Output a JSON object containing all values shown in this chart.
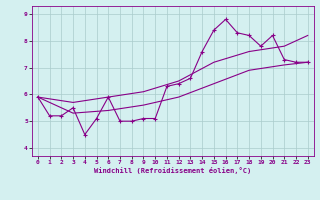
{
  "xlabel": "Windchill (Refroidissement éolien,°C)",
  "bg_color": "#d4f0f0",
  "line_color": "#880088",
  "grid_color": "#aacccc",
  "xlim": [
    -0.5,
    23.5
  ],
  "ylim": [
    3.7,
    9.3
  ],
  "xticks": [
    0,
    1,
    2,
    3,
    4,
    5,
    6,
    7,
    8,
    9,
    10,
    11,
    12,
    13,
    14,
    15,
    16,
    17,
    18,
    19,
    20,
    21,
    22,
    23
  ],
  "yticks": [
    4,
    5,
    6,
    7,
    8,
    9
  ],
  "line1_x": [
    0,
    1,
    2,
    3,
    4,
    5,
    6,
    7,
    8,
    9,
    10,
    11,
    12,
    13,
    14,
    15,
    16,
    17,
    18,
    19,
    20,
    21,
    22,
    23
  ],
  "line1_y": [
    5.9,
    5.2,
    5.2,
    5.5,
    4.5,
    5.1,
    5.9,
    5.0,
    5.0,
    5.1,
    5.1,
    6.3,
    6.4,
    6.6,
    7.6,
    8.4,
    8.8,
    8.3,
    8.2,
    7.8,
    8.2,
    7.3,
    7.2,
    7.2
  ],
  "line2_x": [
    0,
    23
  ],
  "line2_y": [
    5.9,
    7.2
  ],
  "line3_x": [
    0,
    23
  ],
  "line3_y": [
    5.9,
    7.2
  ],
  "line2_ctrl": [
    10,
    6.5
  ],
  "line3_ctrl": [
    10,
    5.8
  ],
  "diag_upper_x": [
    0,
    3,
    6,
    9,
    12,
    15,
    18,
    21,
    23
  ],
  "diag_upper_y": [
    5.9,
    5.7,
    5.9,
    6.1,
    6.5,
    7.2,
    7.6,
    7.8,
    8.2
  ],
  "diag_lower_x": [
    0,
    3,
    6,
    9,
    12,
    15,
    18,
    21,
    23
  ],
  "diag_lower_y": [
    5.9,
    5.3,
    5.4,
    5.6,
    5.9,
    6.4,
    6.9,
    7.1,
    7.2
  ]
}
